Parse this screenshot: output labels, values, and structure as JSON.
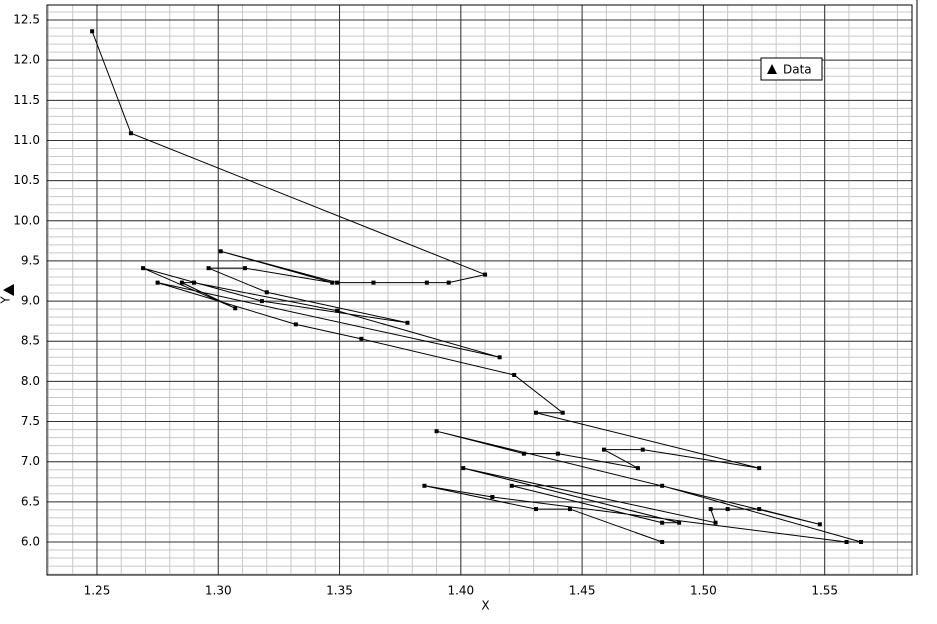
{
  "chart_data": {
    "type": "line",
    "x_label": "X",
    "y_label": "Y",
    "x": [
      1.248,
      1.264,
      1.41,
      1.395,
      1.386,
      1.364,
      1.349,
      1.301,
      1.347,
      1.311,
      1.296,
      1.32,
      1.378,
      1.318,
      1.269,
      1.307,
      1.285,
      1.29,
      1.349,
      1.416,
      1.275,
      1.332,
      1.359,
      1.422,
      1.442,
      1.431,
      1.523,
      1.475,
      1.459,
      1.473,
      1.44,
      1.426,
      1.39,
      1.548,
      1.523,
      1.51,
      1.503,
      1.505,
      1.401,
      1.49,
      1.483,
      1.421,
      1.483,
      1.565,
      1.559,
      1.413,
      1.385,
      1.431,
      1.445,
      1.483
    ],
    "series": [
      {
        "name": "Data",
        "color": "#000000",
        "values": [
          12.36,
          11.09,
          9.33,
          9.23,
          9.23,
          9.23,
          9.23,
          9.62,
          9.23,
          9.41,
          9.41,
          9.11,
          8.73,
          9.0,
          9.41,
          8.91,
          9.23,
          9.23,
          8.88,
          8.3,
          9.23,
          8.71,
          8.53,
          8.08,
          7.61,
          7.61,
          6.92,
          7.15,
          7.15,
          6.92,
          7.1,
          7.1,
          7.38,
          6.22,
          6.41,
          6.41,
          6.41,
          6.24,
          6.92,
          6.24,
          6.24,
          6.7,
          6.7,
          6.0,
          6.0,
          6.56,
          6.7,
          6.41,
          6.41,
          6.0
        ]
      }
    ],
    "xlim": [
      1.2294,
      1.586
    ],
    "ylim": [
      5.589,
      12.687
    ],
    "xticks": [
      1.25,
      {
        "value": 1.3,
        "label": "1.30"
      },
      1.35,
      {
        "value": 1.4,
        "label": "1.40"
      },
      1.45,
      {
        "value": 1.5,
        "label": "1.50"
      },
      1.55
    ],
    "yticks": [
      {
        "value": 6,
        "label": "6.0"
      },
      6.5,
      {
        "value": 7,
        "label": "7.0"
      },
      7.5,
      {
        "value": 8,
        "label": "8.0"
      },
      8.5,
      {
        "value": 9,
        "label": "9.0"
      },
      9.5,
      {
        "value": 10,
        "label": "10.0"
      },
      10.5,
      {
        "value": 11,
        "label": "11.0"
      },
      11.5,
      {
        "value": 12,
        "label": "12.0"
      },
      12.5
    ],
    "grid": true,
    "legend": "upper right"
  }
}
